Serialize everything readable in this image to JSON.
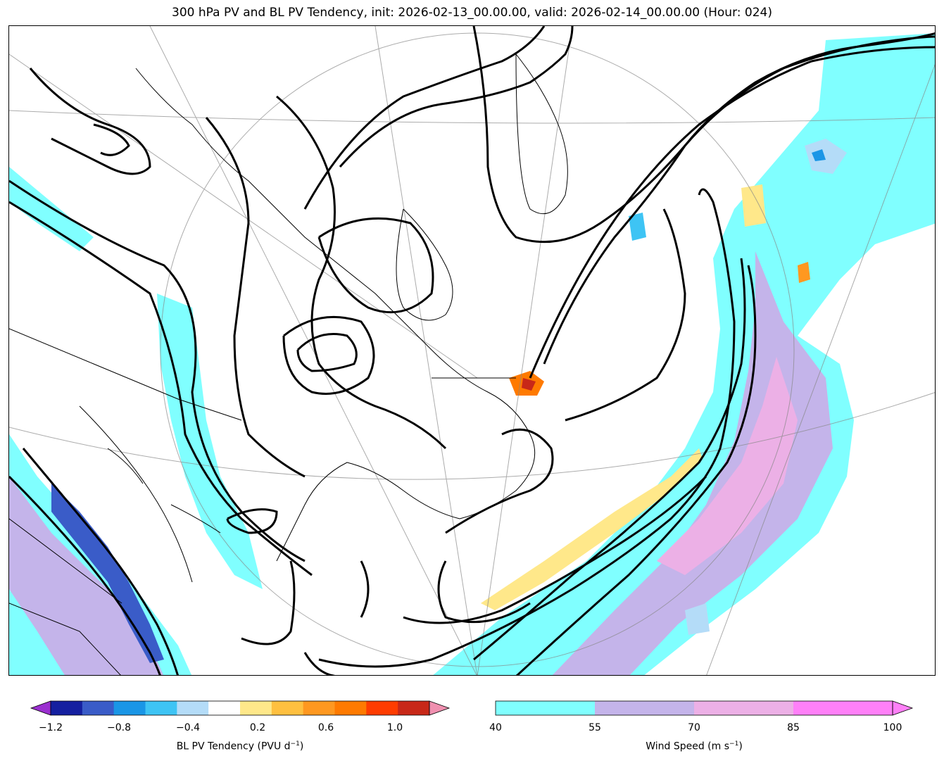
{
  "title": "300 hPa PV and BL PV Tendency, init: 2026-02-13_00.00.00, valid: 2026-02-14_00.00.00 (Hour: 024)",
  "pv_tendency_colorbar": {
    "label": "BL PV Tendency (PVU d",
    "label_exp": "−1",
    "label_close": ")",
    "ticks": [
      "−1.2",
      "−0.8",
      "−0.4",
      "0.2",
      "0.6",
      "1.0"
    ],
    "colors": [
      "#9b30d0",
      "#1520a0",
      "#3a5cc8",
      "#1a96e6",
      "#3ec4f4",
      "#b4dcf8",
      "#ffffff",
      "#ffe88a",
      "#ffc040",
      "#ff9820",
      "#ff7a00",
      "#ff3c00",
      "#c82818",
      "#f090b0"
    ]
  },
  "wind_speed_colorbar": {
    "label": "Wind Speed (m s",
    "label_exp": "−1",
    "label_close": ")",
    "ticks": [
      "40",
      "55",
      "70",
      "85",
      "100"
    ],
    "colors": [
      "#80ffff",
      "#c4b4ea",
      "#ecb0e6",
      "#ff80f8"
    ]
  }
}
